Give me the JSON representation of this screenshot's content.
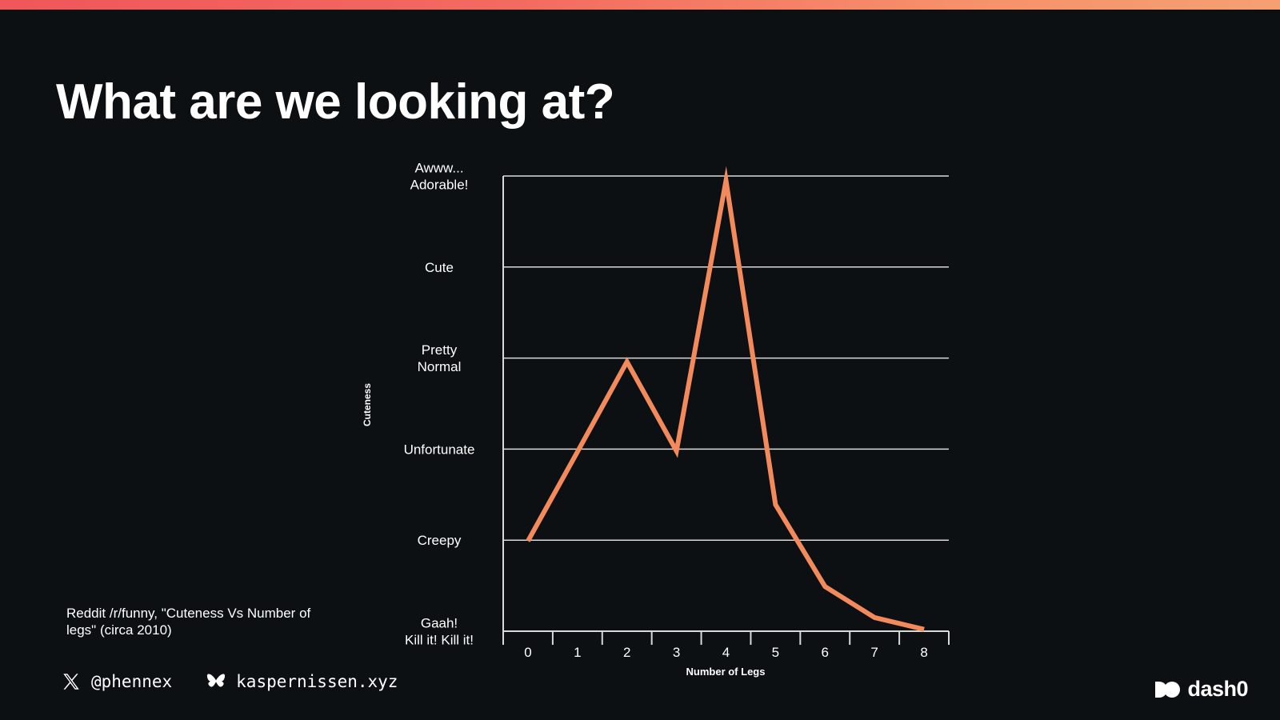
{
  "slide": {
    "title": "What are we looking at?"
  },
  "source_note": "Reddit /r/funny, \"Cuteness Vs Number of legs\" (circa 2010)",
  "footer": {
    "x_handle": "@phennex",
    "x_icon": "x-logo-icon",
    "bluesky_handle": "kaspernissen.xyz",
    "bluesky_icon": "butterfly-icon"
  },
  "brand": {
    "name": "dash0",
    "icon": "dash0-logo-icon"
  },
  "colors": {
    "background": "#0c1013",
    "line": "#f38a5c",
    "grid": "#d9d9d9",
    "accent_gradient_start": "#f0565a",
    "accent_gradient_end": "#f6a072"
  },
  "chart_data": {
    "type": "line",
    "title": "",
    "xlabel": "Number of Legs",
    "ylabel": "Cuteness",
    "x": [
      0,
      1,
      2,
      3,
      4,
      5,
      6,
      7,
      8
    ],
    "xlim": [
      -0.5,
      8.5
    ],
    "ylim": [
      0,
      5
    ],
    "y_categories": [
      [
        "Gaah!",
        "Kill it! Kill it!"
      ],
      [
        "Creepy"
      ],
      [
        "Unfortunate"
      ],
      [
        "Pretty",
        "Normal"
      ],
      [
        "Cute"
      ],
      [
        "Awww...",
        "Adorable!"
      ]
    ],
    "series": [
      {
        "values": [
          0.99,
          1.97,
          2.96,
          1.98,
          4.95,
          1.39,
          0.49,
          0.15,
          0.02
        ]
      }
    ],
    "grid": true,
    "legend": "none"
  }
}
